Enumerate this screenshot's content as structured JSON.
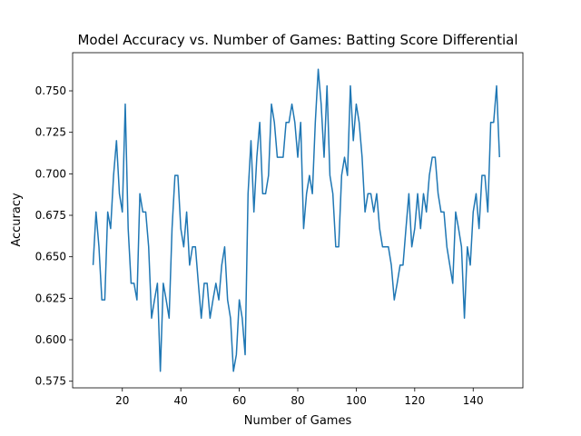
{
  "chart_data": {
    "type": "line",
    "title": "Model Accuracy vs. Number of Games: Batting Score Differential",
    "xlabel": "Number of Games",
    "ylabel": "Accuracy",
    "xlim": [
      3,
      157
    ],
    "ylim": [
      0.571,
      0.773
    ],
    "x_ticks": [
      20,
      40,
      60,
      80,
      100,
      120,
      140
    ],
    "y_ticks": [
      0.575,
      0.6,
      0.625,
      0.65,
      0.675,
      0.7,
      0.725,
      0.75
    ],
    "x_tick_labels": [
      "20",
      "40",
      "60",
      "80",
      "100",
      "120",
      "140"
    ],
    "y_tick_labels": [
      "0.575",
      "0.600",
      "0.625",
      "0.650",
      "0.675",
      "0.700",
      "0.725",
      "0.750"
    ],
    "grid": false,
    "legend": "none",
    "series": [
      {
        "color": "#1f77b4",
        "x": [
          10,
          11,
          12,
          13,
          14,
          15,
          16,
          17,
          18,
          19,
          20,
          21,
          22,
          23,
          24,
          25,
          26,
          27,
          28,
          29,
          30,
          31,
          32,
          33,
          34,
          35,
          36,
          37,
          38,
          39,
          40,
          41,
          42,
          43,
          44,
          45,
          46,
          47,
          48,
          49,
          50,
          51,
          52,
          53,
          54,
          55,
          56,
          57,
          58,
          59,
          60,
          61,
          62,
          63,
          64,
          65,
          66,
          67,
          68,
          69,
          70,
          71,
          72,
          73,
          74,
          75,
          76,
          77,
          78,
          79,
          80,
          81,
          82,
          83,
          84,
          85,
          86,
          87,
          88,
          89,
          90,
          91,
          92,
          93,
          94,
          95,
          96,
          97,
          98,
          99,
          100,
          101,
          102,
          103,
          104,
          105,
          106,
          107,
          108,
          109,
          110,
          111,
          112,
          113,
          114,
          115,
          116,
          117,
          118,
          119,
          120,
          121,
          122,
          123,
          124,
          125,
          126,
          127,
          128,
          129,
          130,
          131,
          132,
          133,
          134,
          135,
          136,
          137,
          138,
          139,
          140,
          141,
          142,
          143,
          144,
          145,
          146,
          147,
          148,
          149
        ],
        "values": [
          0.645,
          0.677,
          0.656,
          0.624,
          0.624,
          0.677,
          0.667,
          0.699,
          0.72,
          0.688,
          0.677,
          0.742,
          0.667,
          0.634,
          0.634,
          0.624,
          0.688,
          0.677,
          0.677,
          0.656,
          0.613,
          0.624,
          0.634,
          0.581,
          0.634,
          0.624,
          0.613,
          0.667,
          0.699,
          0.699,
          0.667,
          0.656,
          0.677,
          0.645,
          0.656,
          0.656,
          0.634,
          0.613,
          0.634,
          0.634,
          0.613,
          0.624,
          0.634,
          0.624,
          0.645,
          0.656,
          0.624,
          0.613,
          0.581,
          0.591,
          0.624,
          0.613,
          0.591,
          0.688,
          0.72,
          0.677,
          0.71,
          0.731,
          0.688,
          0.688,
          0.699,
          0.742,
          0.731,
          0.71,
          0.71,
          0.71,
          0.731,
          0.731,
          0.742,
          0.731,
          0.71,
          0.731,
          0.667,
          0.688,
          0.699,
          0.688,
          0.731,
          0.763,
          0.742,
          0.71,
          0.753,
          0.699,
          0.688,
          0.656,
          0.656,
          0.699,
          0.71,
          0.699,
          0.753,
          0.72,
          0.742,
          0.731,
          0.71,
          0.677,
          0.688,
          0.688,
          0.677,
          0.688,
          0.667,
          0.656,
          0.656,
          0.656,
          0.645,
          0.624,
          0.634,
          0.645,
          0.645,
          0.667,
          0.688,
          0.656,
          0.667,
          0.688,
          0.667,
          0.688,
          0.677,
          0.699,
          0.71,
          0.71,
          0.688,
          0.677,
          0.677,
          0.656,
          0.645,
          0.634,
          0.677,
          0.667,
          0.656,
          0.613,
          0.656,
          0.645,
          0.677,
          0.688,
          0.667,
          0.699,
          0.699,
          0.677,
          0.731,
          0.731,
          0.753,
          0.71
        ]
      }
    ]
  }
}
